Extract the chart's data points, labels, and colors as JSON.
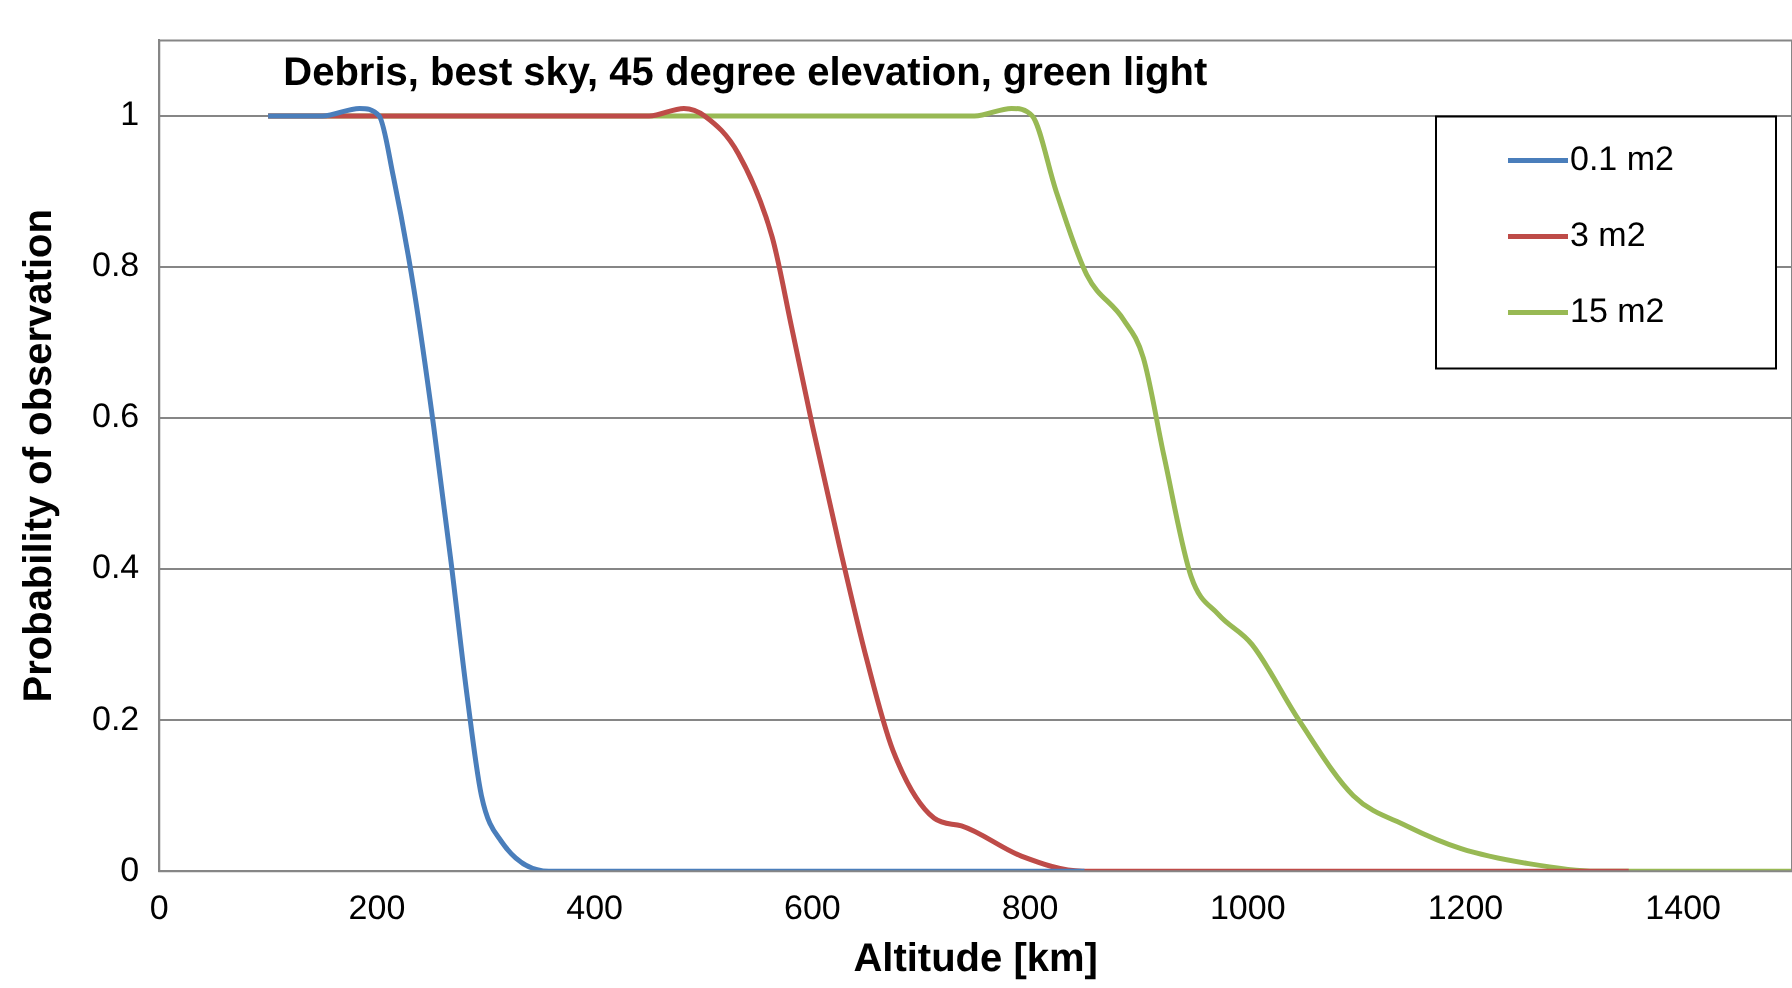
{
  "chart_data": {
    "type": "line",
    "title": "Debris, best sky, 45 degree elevation, green light",
    "xlabel": "Altitude [km]",
    "ylabel": "Probability of observation",
    "xlim": [
      0,
      1500
    ],
    "xticks": [
      0,
      200,
      400,
      600,
      800,
      1000,
      1200,
      1400
    ],
    "ylim": [
      0,
      1.1
    ],
    "yticks": [
      0,
      0.2,
      0.4,
      0.6,
      0.8,
      1
    ],
    "grid": "y",
    "legend": "top right",
    "marker": "none",
    "line_style": "solid",
    "series": [
      {
        "name": "0.1 m2",
        "color": "#4a7ebb",
        "x": [
          100,
          150,
          184,
          202,
          215,
          234,
          252,
          268,
          283,
          296,
          314,
          358,
          400,
          600,
          850
        ],
        "values": [
          1,
          1,
          1.01,
          1,
          0.92,
          0.77,
          0.59,
          0.41,
          0.23,
          0.1,
          0.04,
          0,
          0,
          0,
          0
        ]
      },
      {
        "name": "3 m2",
        "color": "#be4b48",
        "x": [
          100,
          300,
          450,
          482,
          501,
          532,
          563,
          581,
          600,
          625,
          650,
          674,
          712,
          737,
          792,
          848,
          1000,
          1350
        ],
        "values": [
          1,
          1,
          1,
          1.01,
          1,
          0.95,
          0.84,
          0.72,
          0.59,
          0.43,
          0.28,
          0.16,
          0.07,
          0.06,
          0.02,
          0,
          0,
          0
        ]
      },
      {
        "name": "15 m2",
        "color": "#98b954",
        "x": [
          100,
          400,
          749,
          783,
          802,
          824,
          852,
          886,
          904,
          923,
          948,
          973,
          1004,
          1047,
          1097,
          1146,
          1196,
          1258,
          1320,
          1400,
          1500
        ],
        "values": [
          1,
          1,
          1,
          1.01,
          1,
          0.9,
          0.79,
          0.73,
          0.68,
          0.55,
          0.39,
          0.34,
          0.3,
          0.2,
          0.1,
          0.06,
          0.03,
          0.01,
          0,
          0,
          0
        ]
      }
    ]
  }
}
